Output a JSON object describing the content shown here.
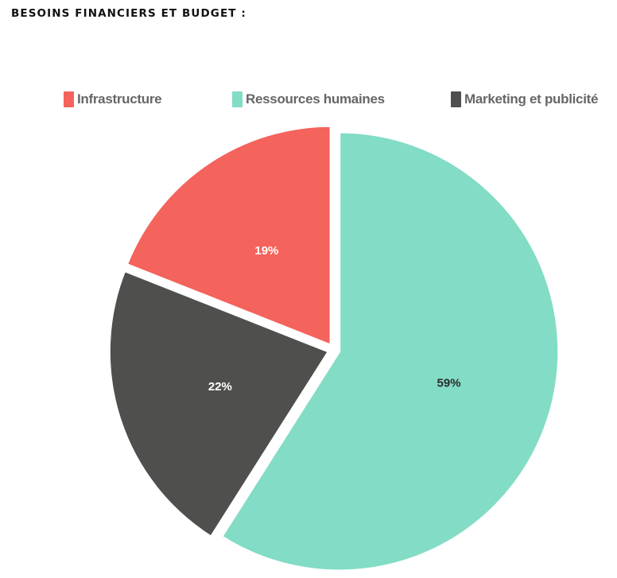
{
  "page": {
    "title": "BESOINS FINANCIERS ET BUDGET :"
  },
  "chart_data": {
    "type": "pie",
    "title": "",
    "categories": [
      "Infrastructure",
      "Ressources humaines",
      "Marketing et publicité"
    ],
    "values": [
      19,
      59,
      22
    ],
    "unit": "%",
    "colors": [
      "#f4635c",
      "#83dcc5",
      "#4f504d"
    ],
    "data_label_colors": [
      "#ffffff",
      "#2b2b2b",
      "#ffffff"
    ],
    "slice_order_clockwise_from_top": [
      "Ressources humaines",
      "Marketing et publicité",
      "Infrastructure"
    ],
    "legend_position": "top",
    "exploded": true
  },
  "legend": {
    "items": [
      {
        "label": "Infrastructure",
        "color": "#f4635c"
      },
      {
        "label": "Ressources humaines",
        "color": "#83dcc5"
      },
      {
        "label": "Marketing et publicité",
        "color": "#4f504d"
      }
    ]
  }
}
